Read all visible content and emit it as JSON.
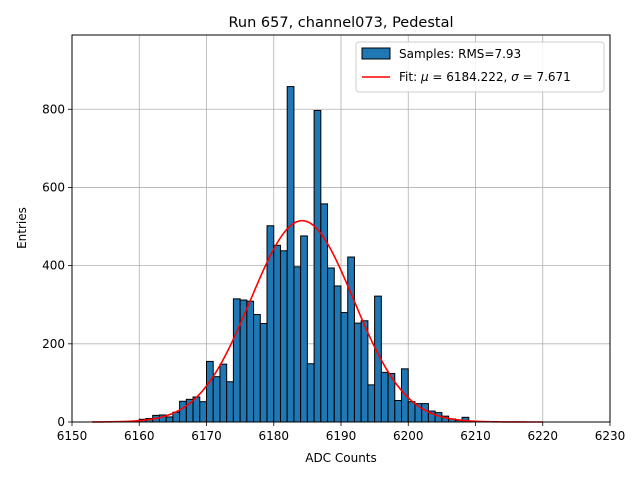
{
  "chart_data": {
    "type": "bar",
    "title": "Run 657, channel073, Pedestal",
    "xlabel": "ADC Counts",
    "ylabel": "Entries",
    "xlim": [
      6150,
      6230
    ],
    "ylim": [
      0,
      990
    ],
    "xticks": [
      6150,
      6160,
      6170,
      6180,
      6190,
      6200,
      6210,
      6220,
      6230
    ],
    "yticks": [
      0,
      200,
      400,
      600,
      800
    ],
    "grid": true,
    "legend_position": "top-right",
    "colors": {
      "bars": "#1f77b4",
      "bar_edge": "#000000",
      "fit": "#ff0000",
      "grid": "#b0b0b0"
    },
    "bins": {
      "start": 6160,
      "width": 1,
      "counts": [
        7,
        9,
        17,
        18,
        13,
        25,
        53,
        58,
        64,
        52,
        155,
        116,
        148,
        103,
        315,
        312,
        309,
        275,
        252,
        502,
        452,
        438,
        858,
        397,
        476,
        149,
        797,
        558,
        394,
        348,
        280,
        422,
        253,
        259,
        95,
        322,
        127,
        124,
        55,
        136,
        52,
        47,
        47,
        28,
        24,
        15,
        8,
        4,
        12,
        2
      ]
    },
    "series": [
      {
        "name": "Samples: RMS=7.93",
        "kind": "histogram"
      },
      {
        "name_prefix": "Fit: ",
        "name_mu": "μ",
        "name_mid": " = 6184.222, ",
        "name_sigma": "σ",
        "name_suffix": " = 7.671",
        "kind": "line",
        "mu": 6184.222,
        "sigma": 7.671,
        "amplitude": 515,
        "x_range": [
          6153,
          6220
        ]
      }
    ]
  }
}
